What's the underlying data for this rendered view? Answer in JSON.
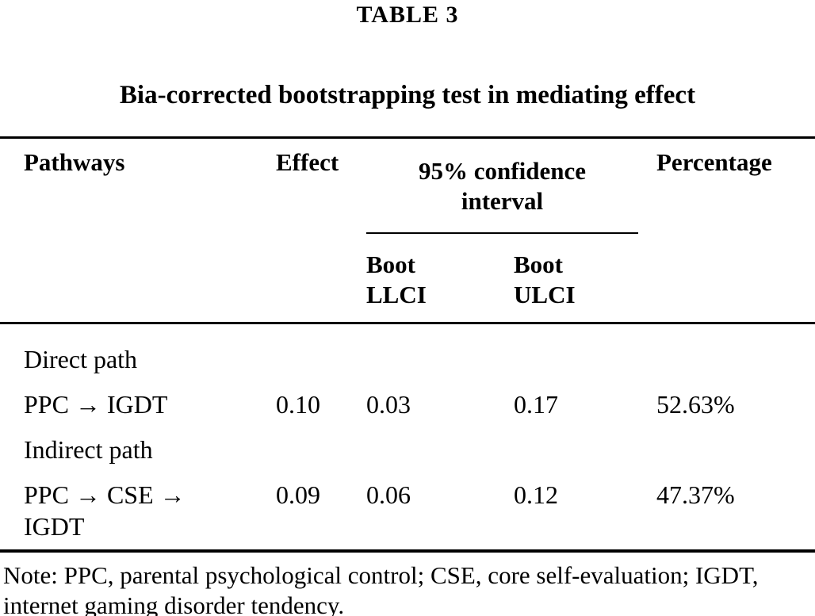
{
  "page": {
    "label": "TABLE 3",
    "title": "Bia-corrected bootstrapping test in mediating effect"
  },
  "table": {
    "headers": {
      "pathways": "Pathways",
      "effect": "Effect",
      "confidence_interval": "95% confidence interval",
      "boot_llci": "Boot LLCI",
      "boot_ulci": "Boot ULCI",
      "percentage": "Percentage"
    },
    "rows": [
      {
        "pathway": "Direct path",
        "effect": "",
        "boot_llci": "",
        "boot_ulci": "",
        "percentage": ""
      },
      {
        "pathway": "PPC → IGDT",
        "effect": "0.10",
        "boot_llci": "0.03",
        "boot_ulci": "0.17",
        "percentage": "52.63%"
      },
      {
        "pathway": "Indirect path",
        "effect": "",
        "boot_llci": "",
        "boot_ulci": "",
        "percentage": ""
      },
      {
        "pathway": "PPC → CSE → IGDT",
        "effect": "0.09",
        "boot_llci": "0.06",
        "boot_ulci": "0.12",
        "percentage": "47.37%"
      }
    ],
    "note": "Note: PPC, parental psychological control; CSE, core self-evaluation; IGDT, internet gaming disorder tendency."
  },
  "colors": {
    "text": "#000000",
    "background": "#ffffff",
    "rule": "#000000"
  }
}
